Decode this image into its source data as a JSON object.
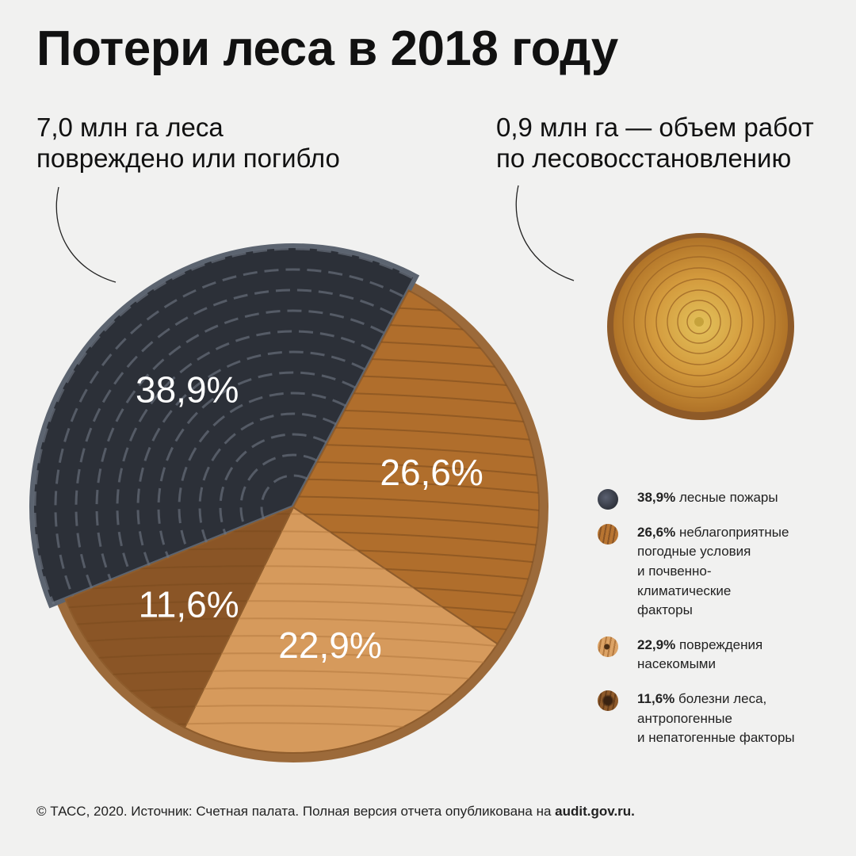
{
  "header": {
    "title": "Потери леса в 2018 году"
  },
  "stats": {
    "left_line1": "7,0 млн га леса",
    "left_line2": "повреждено или погибло",
    "right_line1": "0,9 млн га — объем работ",
    "right_line2": "по лесовосстановлению"
  },
  "chart_data": {
    "type": "pie",
    "title": "",
    "total_label": "7,0 млн га леса повреждено или погибло",
    "slices": [
      {
        "label": "38,9%",
        "value": 38.9,
        "legend_value": "38,9%",
        "legend_text": "лесные пожары",
        "color": "#2c3038"
      },
      {
        "label": "26,6%",
        "value": 26.6,
        "legend_value": "26,6%",
        "legend_text": "неблагоприятные погодные условия и почвенно-климатические факторы",
        "legend_lines": [
          "неблагоприятные",
          "погодные условия",
          "и почвенно-",
          "климатические",
          "факторы"
        ],
        "color": "#b06e2c"
      },
      {
        "label": "22,9%",
        "value": 22.9,
        "legend_value": "22,9%",
        "legend_text": "повреждения насекомыми",
        "legend_lines": [
          "повреждения",
          "насекомыми"
        ],
        "color": "#d69a5c"
      },
      {
        "label": "11,6%",
        "value": 11.6,
        "legend_value": "11,6%",
        "legend_text": "болезни леса, антропогенные и непатогенные факторы",
        "legend_lines": [
          "болезни леса,",
          "антропогенные",
          "и непатогенные факторы"
        ],
        "color": "#8a5526"
      }
    ]
  },
  "legend": {
    "items": [
      {
        "value": "38,9%",
        "lines": [
          "лесные пожары"
        ]
      },
      {
        "value": "26,6%",
        "lines": [
          "неблагоприятные",
          "погодные условия",
          "и почвенно-",
          "климатические",
          "факторы"
        ]
      },
      {
        "value": "22,9%",
        "lines": [
          "повреждения",
          "насекомыми"
        ]
      },
      {
        "value": "11,6%",
        "lines": [
          "болезни леса,",
          "антропогенные",
          "и непатогенные факторы"
        ]
      }
    ]
  },
  "colors": {
    "fire": "#2c3038",
    "weather": "#b06e2c",
    "insects": "#d69a5c",
    "disease": "#8a5526",
    "background": "#f1f1f0"
  },
  "footer": {
    "text": "© ТАСС, 2020. Источник: Счетная палата. Полная версия отчета опубликована на ",
    "link": "audit.gov.ru."
  }
}
